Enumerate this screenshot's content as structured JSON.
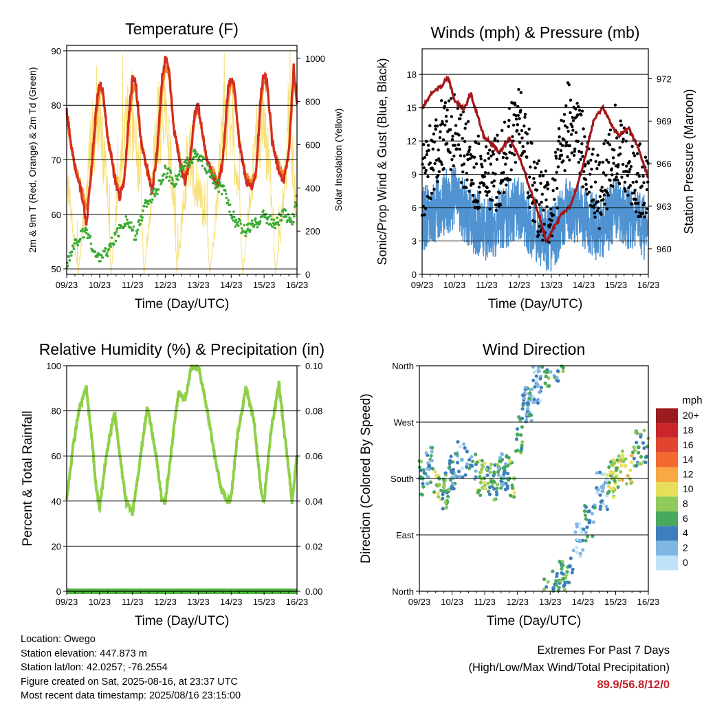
{
  "colors": {
    "temp_2m": "#d42d22",
    "temp_9m": "#f08a24",
    "dewpoint": "#3aab36",
    "solar": "#f8e07a",
    "wind": "#4f93d2",
    "gust": "#000000",
    "pressure": "#a3171b",
    "humidity": "#8ed048",
    "precip": "#4fb33f",
    "extremes": "#c3252b"
  },
  "x_ticks": [
    "09/23",
    "10/23",
    "11/23",
    "12/23",
    "13/23",
    "14/23",
    "15/23",
    "16/23"
  ],
  "charts": {
    "temperature": {
      "title": "Temperature (F)",
      "xlabel": "Time (Day/UTC)",
      "ylabel": "2m & 9m T (Red, Orange) & 2m Td (Green)",
      "y2label": "Solar Insolation (Yellow)"
    },
    "winds": {
      "title": "Winds (mph) & Pressure (mb)",
      "xlabel": "Time (Day/UTC)",
      "ylabel": "Sonic/Prop Wind & Gust (Blue, Black)",
      "y2label": "Station Pressure (Maroon)"
    },
    "humidity": {
      "title": "Relative Humidity (%) & Precipitation (in)",
      "xlabel": "Time (Day/UTC)",
      "ylabel": "Percent & Total Rainfall"
    },
    "direction": {
      "title": "Wind Direction",
      "xlabel": "Time (Day/UTC)",
      "ylabel": "Direction (Colored By Speed)",
      "legend_title": "mph",
      "legend_labels": [
        "20+",
        "18",
        "16",
        "14",
        "12",
        "10",
        "8",
        "6",
        "4",
        "2",
        "0"
      ],
      "legend_colors": [
        "#9b1b1e",
        "#c9252b",
        "#e2452f",
        "#f26a30",
        "#f8a944",
        "#e7df5b",
        "#8fca5a",
        "#48a85d",
        "#3d7fbd",
        "#7fb6e2",
        "#bfe3f6"
      ]
    }
  },
  "chart_data": [
    {
      "type": "line",
      "title": "Temperature (F)",
      "xlabel": "Time (Day/UTC)",
      "ylabel": "2m & 9m T (Red, Orange) & 2m Td (Green)",
      "y2label": "Solar Insolation (Yellow)",
      "xlim": [
        0,
        7
      ],
      "ylim": [
        49,
        91
      ],
      "y_ticks": [
        50,
        60,
        70,
        80,
        90
      ],
      "y2lim": [
        0,
        1060
      ],
      "y2_ticks": [
        0,
        200,
        400,
        600,
        800,
        1000
      ],
      "grid": "horizontal",
      "series": [
        {
          "name": "2m T",
          "axis": "left",
          "x": [
            0,
            0.2,
            0.45,
            0.6,
            0.75,
            0.9,
            1,
            1.1,
            1.25,
            1.45,
            1.6,
            1.75,
            1.9,
            2,
            2.1,
            2.25,
            2.45,
            2.6,
            2.75,
            2.9,
            3,
            3.1,
            3.25,
            3.45,
            3.6,
            3.75,
            3.9,
            4,
            4.1,
            4.25,
            4.45,
            4.6,
            4.75,
            4.9,
            5,
            5.1,
            5.25,
            5.45,
            5.6,
            5.75,
            5.9,
            6,
            6.1,
            6.25,
            6.45,
            6.6,
            6.75,
            6.9,
            7
          ],
          "y": [
            79,
            70,
            64,
            58,
            68,
            80,
            84,
            83,
            74,
            67,
            63,
            66,
            79,
            85,
            84,
            74,
            68,
            64,
            72,
            85,
            89,
            87,
            76,
            69,
            66,
            70,
            79,
            80,
            76,
            70,
            67,
            65,
            70,
            83,
            85,
            83,
            73,
            66,
            65,
            67,
            82,
            86,
            84,
            73,
            68,
            66,
            71,
            87,
            80
          ]
        },
        {
          "name": "9m T",
          "axis": "left",
          "x": [
            0,
            0.2,
            0.45,
            0.6,
            0.75,
            0.9,
            1,
            1.1,
            1.25,
            1.45,
            1.6,
            1.75,
            1.9,
            2,
            2.1,
            2.25,
            2.45,
            2.6,
            2.75,
            2.9,
            3,
            3.1,
            3.25,
            3.45,
            3.6,
            3.75,
            3.9,
            4,
            4.1,
            4.25,
            4.45,
            4.6,
            4.75,
            4.9,
            5,
            5.1,
            5.25,
            5.45,
            5.6,
            5.75,
            5.9,
            6,
            6.1,
            6.25,
            6.45,
            6.6,
            6.75,
            6.9,
            7
          ],
          "y": [
            78,
            70,
            65,
            61,
            67,
            78,
            83,
            82,
            74,
            68,
            64,
            66,
            77,
            83,
            83,
            74,
            68,
            65,
            71,
            83,
            87,
            86,
            76,
            70,
            67,
            70,
            78,
            79,
            76,
            70,
            68,
            66,
            70,
            81,
            84,
            82,
            73,
            67,
            66,
            67,
            80,
            85,
            83,
            73,
            69,
            67,
            71,
            85,
            80
          ]
        },
        {
          "name": "2m Td",
          "axis": "left",
          "x": [
            0,
            0.3,
            0.6,
            0.9,
            1.2,
            1.5,
            1.8,
            2.1,
            2.4,
            2.7,
            3,
            3.3,
            3.6,
            3.9,
            4.2,
            4.5,
            4.8,
            5.1,
            5.4,
            5.7,
            6,
            6.3,
            6.6,
            6.9,
            7
          ],
          "y": [
            51,
            55,
            57,
            52,
            53,
            56,
            59,
            56,
            62,
            64,
            68,
            66,
            69,
            71,
            69,
            66,
            64,
            59,
            57,
            58,
            60,
            58,
            60,
            59,
            64
          ]
        },
        {
          "name": "Solar Insolation",
          "axis": "right",
          "x": [
            0,
            0.35,
            0.55,
            0.75,
            1,
            1.25,
            1.35,
            1.55,
            1.75,
            2,
            2.25,
            2.35,
            2.55,
            2.75,
            3,
            3.25,
            3.35,
            3.55,
            3.75,
            4,
            4.25,
            4.35,
            4.55,
            4.75,
            5,
            5.25,
            5.35,
            5.55,
            5.75,
            6,
            6.25,
            6.35,
            6.55,
            6.75,
            7
          ],
          "y": [
            600,
            0,
            400,
            800,
            950,
            500,
            0,
            450,
            850,
            950,
            550,
            0,
            420,
            880,
            980,
            500,
            0,
            420,
            700,
            480,
            350,
            0,
            380,
            880,
            960,
            450,
            0,
            380,
            800,
            900,
            450,
            0,
            350,
            950,
            300
          ]
        }
      ]
    },
    {
      "type": "line",
      "title": "Winds (mph) & Pressure (mb)",
      "xlabel": "Time (Day/UTC)",
      "ylabel": "Sonic/Prop Wind & Gust (Blue, Black)",
      "y2label": "Station Pressure (Maroon)",
      "xlim": [
        0,
        7
      ],
      "ylim": [
        0,
        20.3
      ],
      "y_ticks": [
        0,
        3,
        6,
        9,
        12,
        15,
        18
      ],
      "y2lim": [
        958.2,
        974.1
      ],
      "y2_ticks": [
        960,
        963,
        966,
        969,
        972
      ],
      "grid": "horizontal",
      "series": [
        {
          "name": "Sonic/Prop Wind",
          "axis": "left",
          "x": [
            0,
            0.5,
            1,
            1.5,
            2,
            2.5,
            3,
            3.5,
            4,
            4.5,
            5,
            5.5,
            6,
            6.5,
            7
          ],
          "y": [
            5,
            6,
            7,
            5,
            4,
            5,
            6,
            4,
            3,
            6,
            5,
            4,
            6,
            5,
            4
          ]
        },
        {
          "name": "Gust",
          "axis": "left",
          "x": [
            0,
            0.5,
            1,
            1.5,
            2,
            2.5,
            3,
            3.5,
            4,
            4.5,
            5,
            5.5,
            6,
            6.5,
            7
          ],
          "y": [
            8,
            12,
            13,
            10,
            8,
            10,
            14,
            7,
            6,
            14,
            11,
            7,
            12,
            9,
            8
          ]
        },
        {
          "name": "Station Pressure",
          "axis": "right",
          "x": [
            0,
            0.3,
            0.6,
            0.8,
            1.0,
            1.3,
            1.5,
            1.7,
            1.9,
            2.1,
            2.4,
            2.7,
            3.0,
            3.3,
            3.6,
            3.85,
            4.0,
            4.3,
            4.6,
            5.0,
            5.3,
            5.6,
            5.9,
            6.1,
            6.4,
            6.7,
            7.0
          ],
          "y": [
            969.9,
            971.0,
            971.5,
            972.1,
            970.5,
            969.8,
            971.0,
            969.5,
            968.0,
            967.5,
            966.8,
            967.8,
            966.5,
            964.5,
            962.5,
            960.5,
            961.2,
            962.4,
            963.0,
            966.0,
            969.0,
            970.0,
            968.5,
            968.0,
            968.5,
            967.0,
            965.0
          ]
        }
      ]
    },
    {
      "type": "line",
      "title": "Relative Humidity (%) & Precipitation (in)",
      "xlabel": "Time (Day/UTC)",
      "ylabel": "Percent & Total Rainfall",
      "xlim": [
        0,
        7
      ],
      "ylim": [
        0,
        100
      ],
      "y_ticks": [
        0,
        20,
        40,
        60,
        80,
        100
      ],
      "y2lim": [
        0,
        0.1
      ],
      "y2_ticks": [
        "0.00",
        "0.02",
        "0.04",
        "0.06",
        "0.08",
        "0.10"
      ],
      "grid": "horizontal",
      "series": [
        {
          "name": "Relative Humidity",
          "axis": "left",
          "x": [
            0,
            0.2,
            0.4,
            0.6,
            0.75,
            0.9,
            1.0,
            1.2,
            1.45,
            1.6,
            1.8,
            2.0,
            2.2,
            2.45,
            2.7,
            2.9,
            3.0,
            3.2,
            3.4,
            3.6,
            3.8,
            4.0,
            4.25,
            4.5,
            4.7,
            4.9,
            5.0,
            5.2,
            5.45,
            5.7,
            5.9,
            6.0,
            6.2,
            6.45,
            6.7,
            6.85,
            7.0
          ],
          "y": [
            40,
            65,
            82,
            90,
            70,
            45,
            37,
            60,
            80,
            62,
            40,
            35,
            55,
            82,
            62,
            40,
            40,
            65,
            88,
            85,
            100,
            100,
            82,
            60,
            45,
            40,
            42,
            70,
            90,
            75,
            45,
            40,
            70,
            92,
            60,
            40,
            60
          ]
        },
        {
          "name": "Total Rainfall",
          "axis": "right",
          "x": [
            0,
            7
          ],
          "y": [
            0,
            0
          ]
        }
      ]
    },
    {
      "type": "scatter",
      "title": "Wind Direction",
      "xlabel": "Time (Day/UTC)",
      "ylabel": "Direction (Colored By Speed)",
      "xlim": [
        0,
        7
      ],
      "ylim": [
        0,
        360
      ],
      "y_ticks": [
        "North",
        "East",
        "South",
        "West",
        "North"
      ],
      "grid": "horizontal",
      "legend": "right",
      "color_scale": "mph",
      "points": [
        {
          "x": 0.1,
          "y": 180,
          "speed": 6
        },
        {
          "x": 0.3,
          "y": 200,
          "speed": 4
        },
        {
          "x": 0.6,
          "y": 170,
          "speed": 8
        },
        {
          "x": 0.8,
          "y": 160,
          "speed": 6
        },
        {
          "x": 1.0,
          "y": 190,
          "speed": 4
        },
        {
          "x": 1.3,
          "y": 210,
          "speed": 2
        },
        {
          "x": 1.6,
          "y": 200,
          "speed": 4
        },
        {
          "x": 1.9,
          "y": 180,
          "speed": 8
        },
        {
          "x": 2.2,
          "y": 175,
          "speed": 6
        },
        {
          "x": 2.6,
          "y": 190,
          "speed": 4
        },
        {
          "x": 2.9,
          "y": 180,
          "speed": 8
        },
        {
          "x": 3.0,
          "y": 250,
          "speed": 6
        },
        {
          "x": 3.3,
          "y": 300,
          "speed": 4
        },
        {
          "x": 3.6,
          "y": 330,
          "speed": 2
        },
        {
          "x": 3.9,
          "y": 350,
          "speed": 6
        },
        {
          "x": 4.1,
          "y": 5,
          "speed": 4
        },
        {
          "x": 4.4,
          "y": 20,
          "speed": 6
        },
        {
          "x": 4.6,
          "y": 40,
          "speed": 4
        },
        {
          "x": 4.9,
          "y": 80,
          "speed": 2
        },
        {
          "x": 5.2,
          "y": 110,
          "speed": 4
        },
        {
          "x": 5.6,
          "y": 160,
          "speed": 2
        },
        {
          "x": 5.9,
          "y": 180,
          "speed": 8
        },
        {
          "x": 6.3,
          "y": 200,
          "speed": 10
        },
        {
          "x": 6.7,
          "y": 230,
          "speed": 6
        }
      ]
    }
  ],
  "footer": {
    "lines": [
      "Location: Owego",
      "Station elevation: 447.873 m",
      "Station lat/lon: 42.0257; -76.2554",
      "Figure created on Sat, 2025-08-16, at 23:37 UTC",
      "Most recent data timestamp: 2025/08/16 23:15:00"
    ],
    "extremes_title": "Extremes For Past 7 Days",
    "extremes_subtitle": "(High/Low/Max Wind/Total Precipitation)",
    "extremes_values": "89.9/56.8/12/0"
  }
}
